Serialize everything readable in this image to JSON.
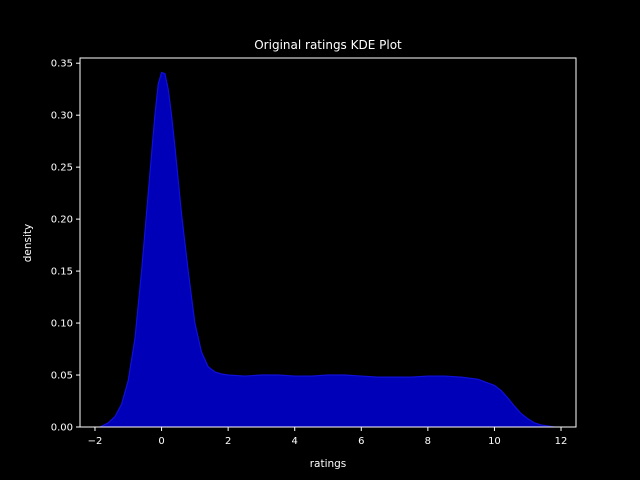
{
  "chart_data": {
    "type": "area",
    "title": "Original ratings KDE Plot",
    "xlabel": "ratings",
    "ylabel": "density",
    "xlim": [
      -2.45,
      12.45
    ],
    "ylim": [
      0,
      0.355
    ],
    "xticks": [
      -2,
      0,
      2,
      4,
      6,
      8,
      10,
      12
    ],
    "yticks": [
      0.0,
      0.05,
      0.1,
      0.15,
      0.2,
      0.25,
      0.3,
      0.35
    ],
    "ytick_labels": [
      "0.00",
      "0.05",
      "0.10",
      "0.15",
      "0.20",
      "0.25",
      "0.30",
      "0.35"
    ],
    "grid": false,
    "fill_color": "#0000b8",
    "line_color": "#1010d8",
    "background": "#000000",
    "foreground": "#ffffff",
    "x": [
      -1.85,
      -1.6,
      -1.4,
      -1.2,
      -1.0,
      -0.8,
      -0.6,
      -0.4,
      -0.2,
      -0.1,
      0.0,
      0.1,
      0.2,
      0.3,
      0.4,
      0.6,
      0.8,
      1.0,
      1.2,
      1.4,
      1.6,
      1.8,
      2.0,
      2.5,
      3.0,
      3.5,
      4.0,
      4.5,
      5.0,
      5.5,
      6.0,
      6.5,
      7.0,
      7.5,
      8.0,
      8.5,
      9.0,
      9.5,
      10.0,
      10.2,
      10.4,
      10.6,
      10.8,
      11.0,
      11.2,
      11.4,
      11.6,
      11.8
    ],
    "y": [
      0.0,
      0.004,
      0.01,
      0.022,
      0.045,
      0.085,
      0.15,
      0.225,
      0.3,
      0.33,
      0.341,
      0.34,
      0.325,
      0.3,
      0.27,
      0.205,
      0.15,
      0.1,
      0.072,
      0.058,
      0.053,
      0.051,
      0.05,
      0.049,
      0.05,
      0.05,
      0.049,
      0.049,
      0.05,
      0.05,
      0.049,
      0.048,
      0.048,
      0.048,
      0.049,
      0.049,
      0.048,
      0.046,
      0.04,
      0.035,
      0.028,
      0.02,
      0.013,
      0.008,
      0.004,
      0.002,
      0.001,
      0.0
    ]
  }
}
